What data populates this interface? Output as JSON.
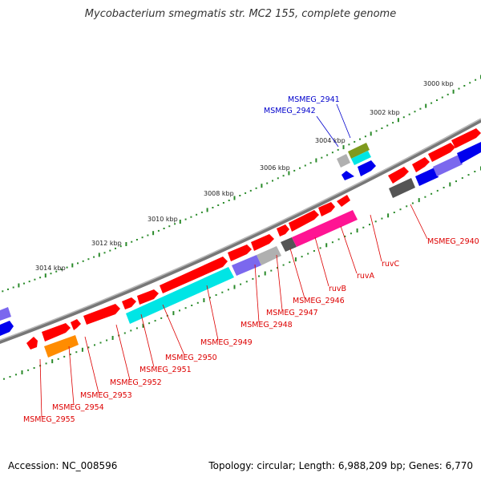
{
  "title": "Mycobacterium smegmatis str. MC2 155, complete genome",
  "accession": "Accession: NC_008596",
  "summary": "Topology: circular; Length: 6,988,209 bp; Genes: 6,770",
  "colors": {
    "backbone": "#777777",
    "tick_major": "#2a8a2a",
    "tick_minor": "#2a8a2a",
    "label_red": "#dd0000",
    "label_blue": "#0000cc",
    "gene_red": "#ff0000",
    "gene_blue": "#0000ee",
    "gene_cyan": "#00e5e5",
    "gene_magenta": "#ff1493",
    "gene_orange": "#ff8c00",
    "gene_purple": "#7b68ee",
    "gene_gray": "#b0b0b0",
    "gene_darkgray": "#555555",
    "gene_olive": "#7f9a1e"
  },
  "kbp_labels": [
    "3000 kbp",
    "3002 kbp",
    "3004 kbp",
    "3006 kbp",
    "3008 kbp",
    "3010 kbp",
    "3012 kbp",
    "3014 kbp"
  ],
  "gene_labels_red": [
    "MSMEG_2940",
    "ruvC",
    "ruvA",
    "ruvB",
    "MSMEG_2946",
    "MSMEG_2947",
    "MSMEG_2948",
    "MSMEG_2949",
    "MSMEG_2950",
    "MSMEG_2951",
    "MSMEG_2952",
    "MSMEG_2953",
    "MSMEG_2954",
    "MSMEG_2955"
  ],
  "gene_labels_blue": [
    "MSMEG_2941",
    "MSMEG_2942"
  ]
}
